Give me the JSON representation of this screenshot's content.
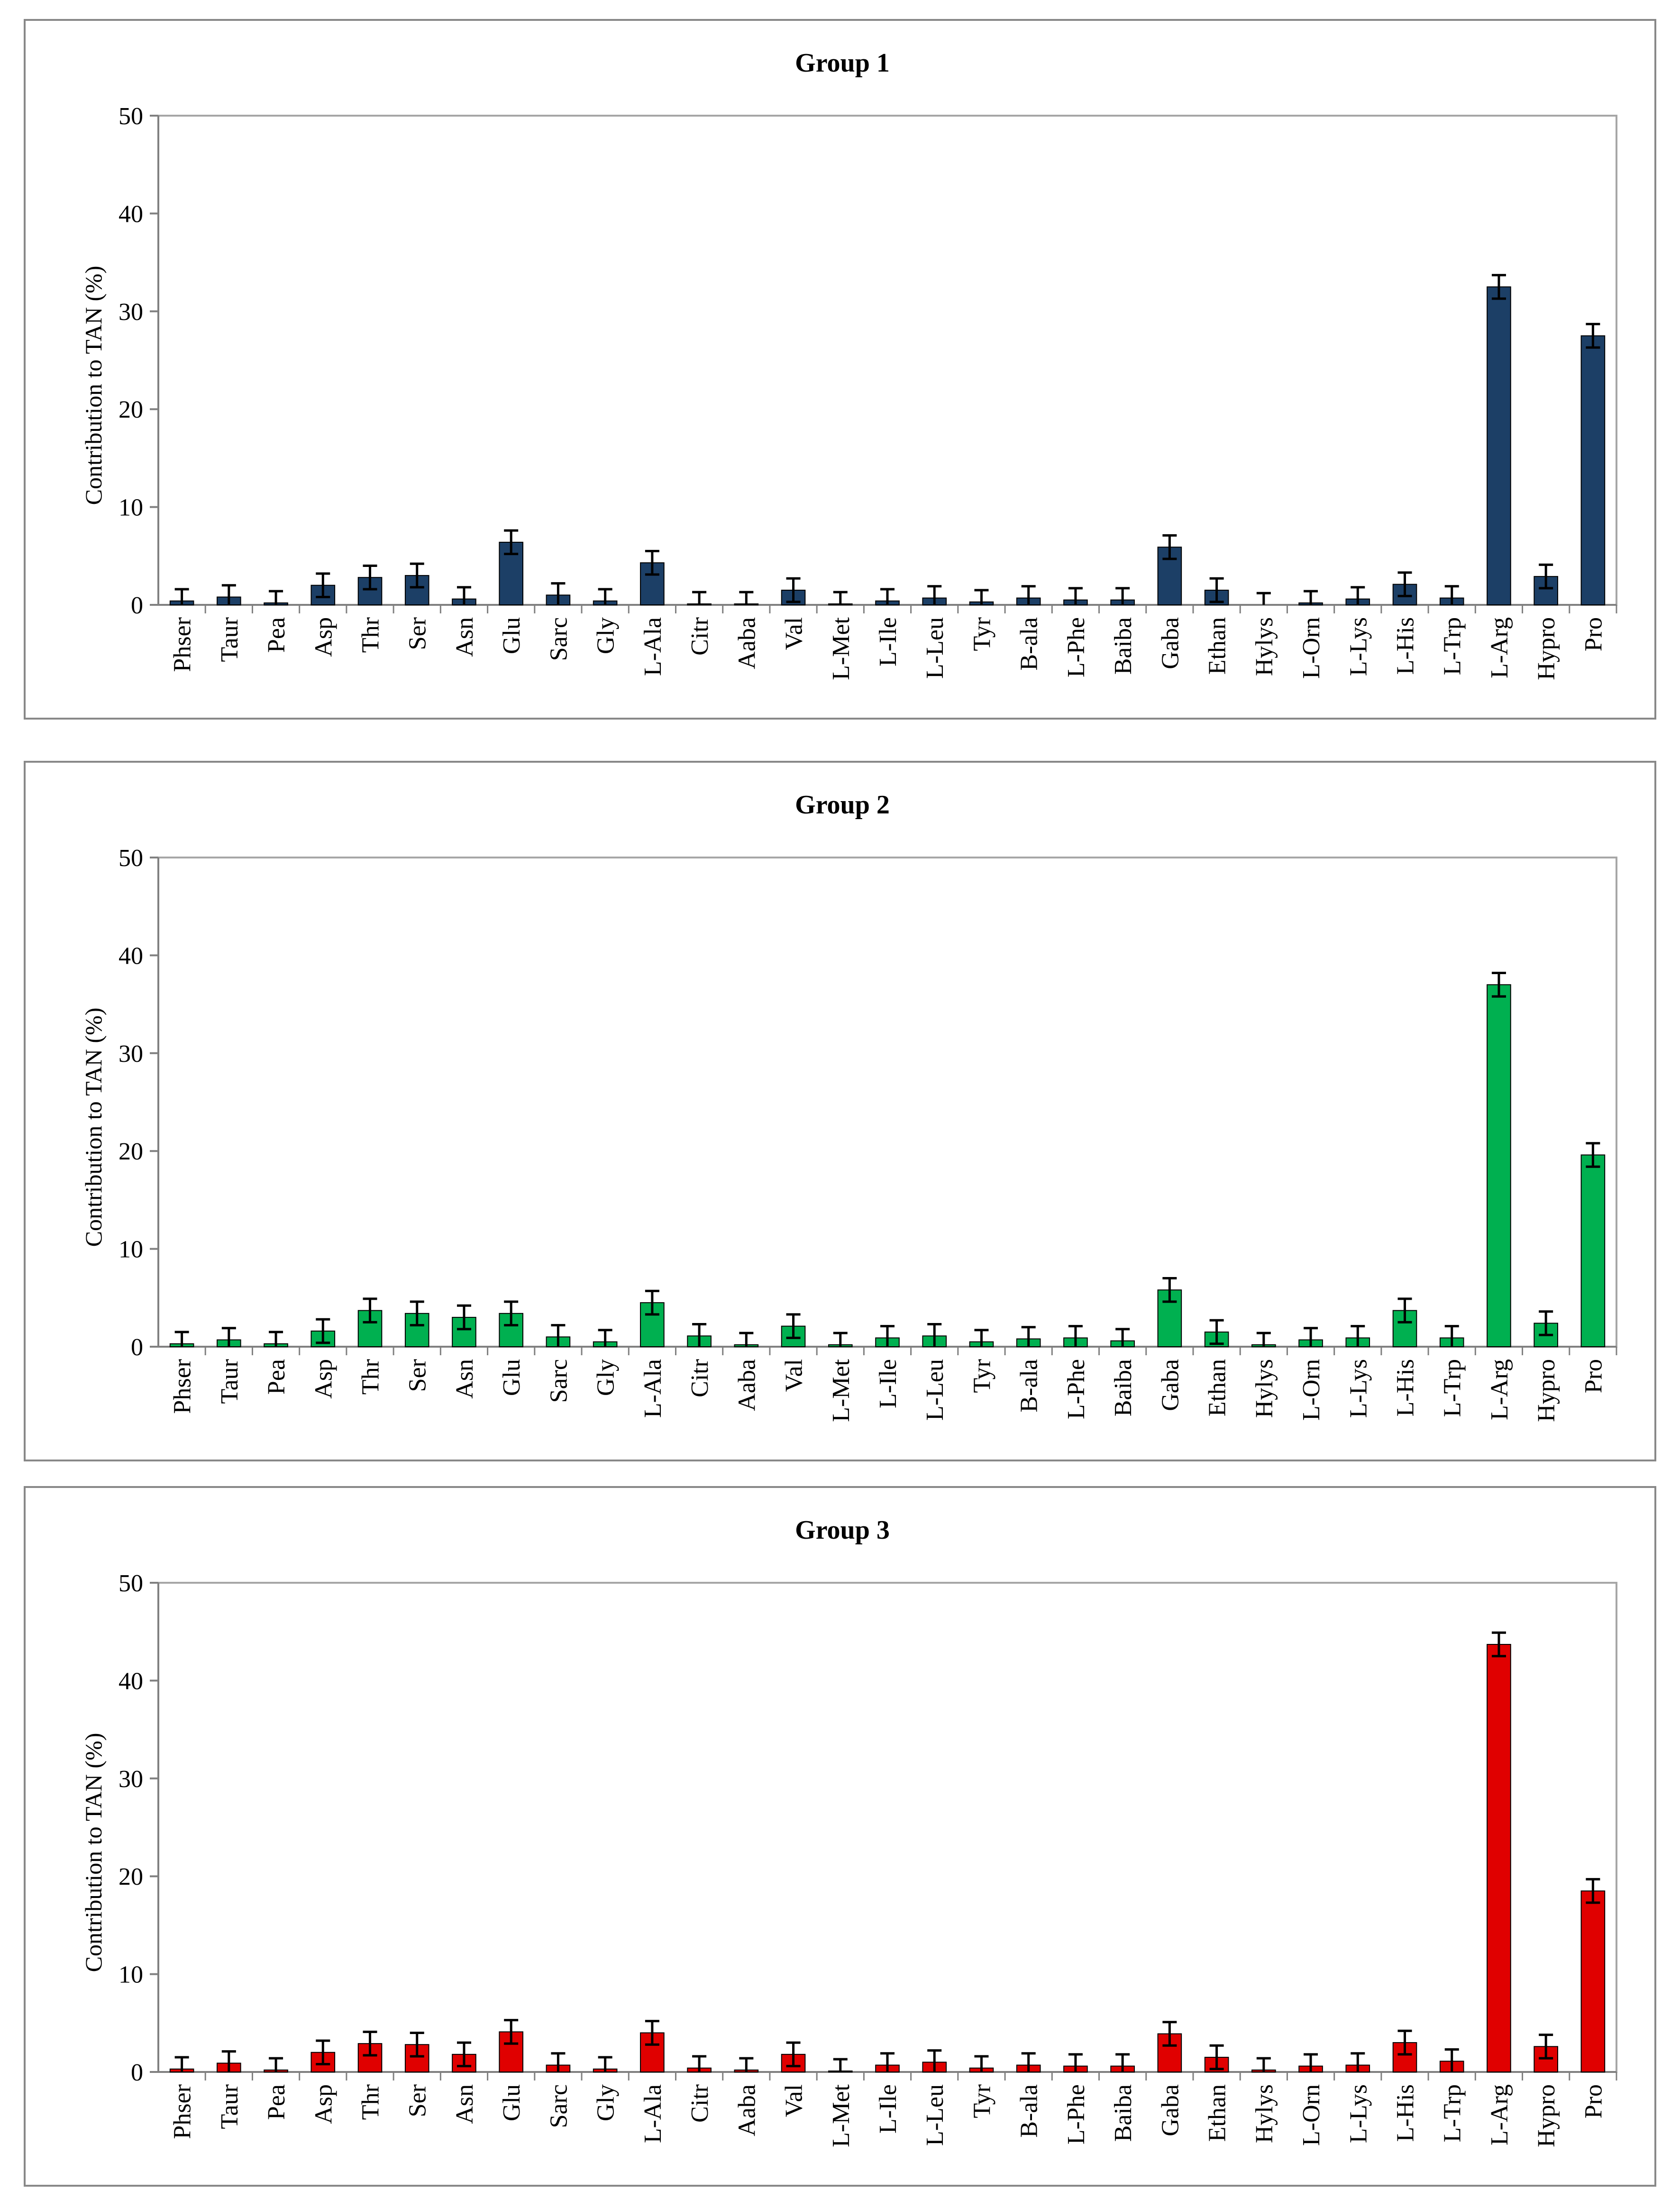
{
  "chart_data": [
    {
      "type": "bar",
      "title": "Group 1",
      "xlabel": "",
      "ylabel": "Contribution to TAN (%)",
      "ylim": [
        0,
        50
      ],
      "yticks": [
        "0",
        "10",
        "20",
        "30",
        "40",
        "50"
      ],
      "grid": false,
      "bar_color": "#1c3f66",
      "categories": [
        "Phser",
        "Taur",
        "Pea",
        "Asp",
        "Thr",
        "Ser",
        "Asn",
        "Glu",
        "Sarc",
        "Gly",
        "L-Ala",
        "Citr",
        "Aaba",
        "Val",
        "L-Met",
        "L-Ile",
        "L-Leu",
        "Tyr",
        "B-ala",
        "L-Phe",
        "Baiba",
        "Gaba",
        "Ethan",
        "Hylys",
        "L-Orn",
        "L-Lys",
        "L-His",
        "L-Trp",
        "L-Arg",
        "Hypro",
        "Pro"
      ],
      "values": [
        0.4,
        0.8,
        0.2,
        2.0,
        2.8,
        3.0,
        0.6,
        6.4,
        1.0,
        0.4,
        4.3,
        0.1,
        0.1,
        1.5,
        0.1,
        0.4,
        0.7,
        0.3,
        0.7,
        0.5,
        0.5,
        5.9,
        1.5,
        0.0,
        0.2,
        0.6,
        2.1,
        0.7,
        32.5,
        2.9,
        27.5
      ],
      "errors": [
        1.2,
        1.2,
        1.2,
        1.2,
        1.2,
        1.2,
        1.2,
        1.2,
        1.2,
        1.2,
        1.2,
        1.2,
        1.2,
        1.2,
        1.2,
        1.2,
        1.2,
        1.2,
        1.2,
        1.2,
        1.2,
        1.2,
        1.2,
        1.2,
        1.2,
        1.2,
        1.2,
        1.2,
        1.2,
        1.2,
        1.2
      ]
    },
    {
      "type": "bar",
      "title": "Group 2",
      "xlabel": "",
      "ylabel": "Contribution to TAN (%)",
      "ylim": [
        0,
        50
      ],
      "yticks": [
        "0",
        "10",
        "20",
        "30",
        "40",
        "50"
      ],
      "grid": false,
      "bar_color": "#00b050",
      "categories": [
        "Phser",
        "Taur",
        "Pea",
        "Asp",
        "Thr",
        "Ser",
        "Asn",
        "Glu",
        "Sarc",
        "Gly",
        "L-Ala",
        "Citr",
        "Aaba",
        "Val",
        "L-Met",
        "L-Ile",
        "L-Leu",
        "Tyr",
        "B-ala",
        "L-Phe",
        "Baiba",
        "Gaba",
        "Ethan",
        "Hylys",
        "L-Orn",
        "L-Lys",
        "L-His",
        "L-Trp",
        "L-Arg",
        "Hypro",
        "Pro"
      ],
      "values": [
        0.3,
        0.7,
        0.3,
        1.6,
        3.7,
        3.4,
        3.0,
        3.4,
        1.0,
        0.5,
        4.5,
        1.1,
        0.2,
        2.1,
        0.2,
        0.9,
        1.1,
        0.5,
        0.8,
        0.9,
        0.6,
        5.8,
        1.5,
        0.2,
        0.7,
        0.9,
        3.7,
        0.9,
        37.0,
        2.4,
        19.6
      ],
      "errors": [
        1.2,
        1.2,
        1.2,
        1.2,
        1.2,
        1.2,
        1.2,
        1.2,
        1.2,
        1.2,
        1.2,
        1.2,
        1.2,
        1.2,
        1.2,
        1.2,
        1.2,
        1.2,
        1.2,
        1.2,
        1.2,
        1.2,
        1.2,
        1.2,
        1.2,
        1.2,
        1.2,
        1.2,
        1.2,
        1.2,
        1.2
      ]
    },
    {
      "type": "bar",
      "title": "Group 3",
      "xlabel": "",
      "ylabel": "Contribution to TAN (%)",
      "ylim": [
        0,
        50
      ],
      "yticks": [
        "0",
        "10",
        "20",
        "30",
        "40",
        "50"
      ],
      "grid": false,
      "bar_color": "#e00000",
      "categories": [
        "Phser",
        "Taur",
        "Pea",
        "Asp",
        "Thr",
        "Ser",
        "Asn",
        "Glu",
        "Sarc",
        "Gly",
        "L-Ala",
        "Citr",
        "Aaba",
        "Val",
        "L-Met",
        "L-Ile",
        "L-Leu",
        "Tyr",
        "B-ala",
        "L-Phe",
        "Baiba",
        "Gaba",
        "Ethan",
        "Hylys",
        "L-Orn",
        "L-Lys",
        "L-His",
        "L-Trp",
        "L-Arg",
        "Hypro",
        "Pro"
      ],
      "values": [
        0.3,
        0.9,
        0.2,
        2.0,
        2.9,
        2.8,
        1.8,
        4.1,
        0.7,
        0.3,
        4.0,
        0.4,
        0.2,
        1.8,
        0.1,
        0.7,
        1.0,
        0.4,
        0.7,
        0.6,
        0.6,
        3.9,
        1.5,
        0.2,
        0.6,
        0.7,
        3.0,
        1.1,
        43.7,
        2.6,
        18.5
      ],
      "errors": [
        1.2,
        1.2,
        1.2,
        1.2,
        1.2,
        1.2,
        1.2,
        1.2,
        1.2,
        1.2,
        1.2,
        1.2,
        1.2,
        1.2,
        1.2,
        1.2,
        1.2,
        1.2,
        1.2,
        1.2,
        1.2,
        1.2,
        1.2,
        1.2,
        1.2,
        1.2,
        1.2,
        1.2,
        1.2,
        1.2,
        1.2
      ]
    }
  ]
}
